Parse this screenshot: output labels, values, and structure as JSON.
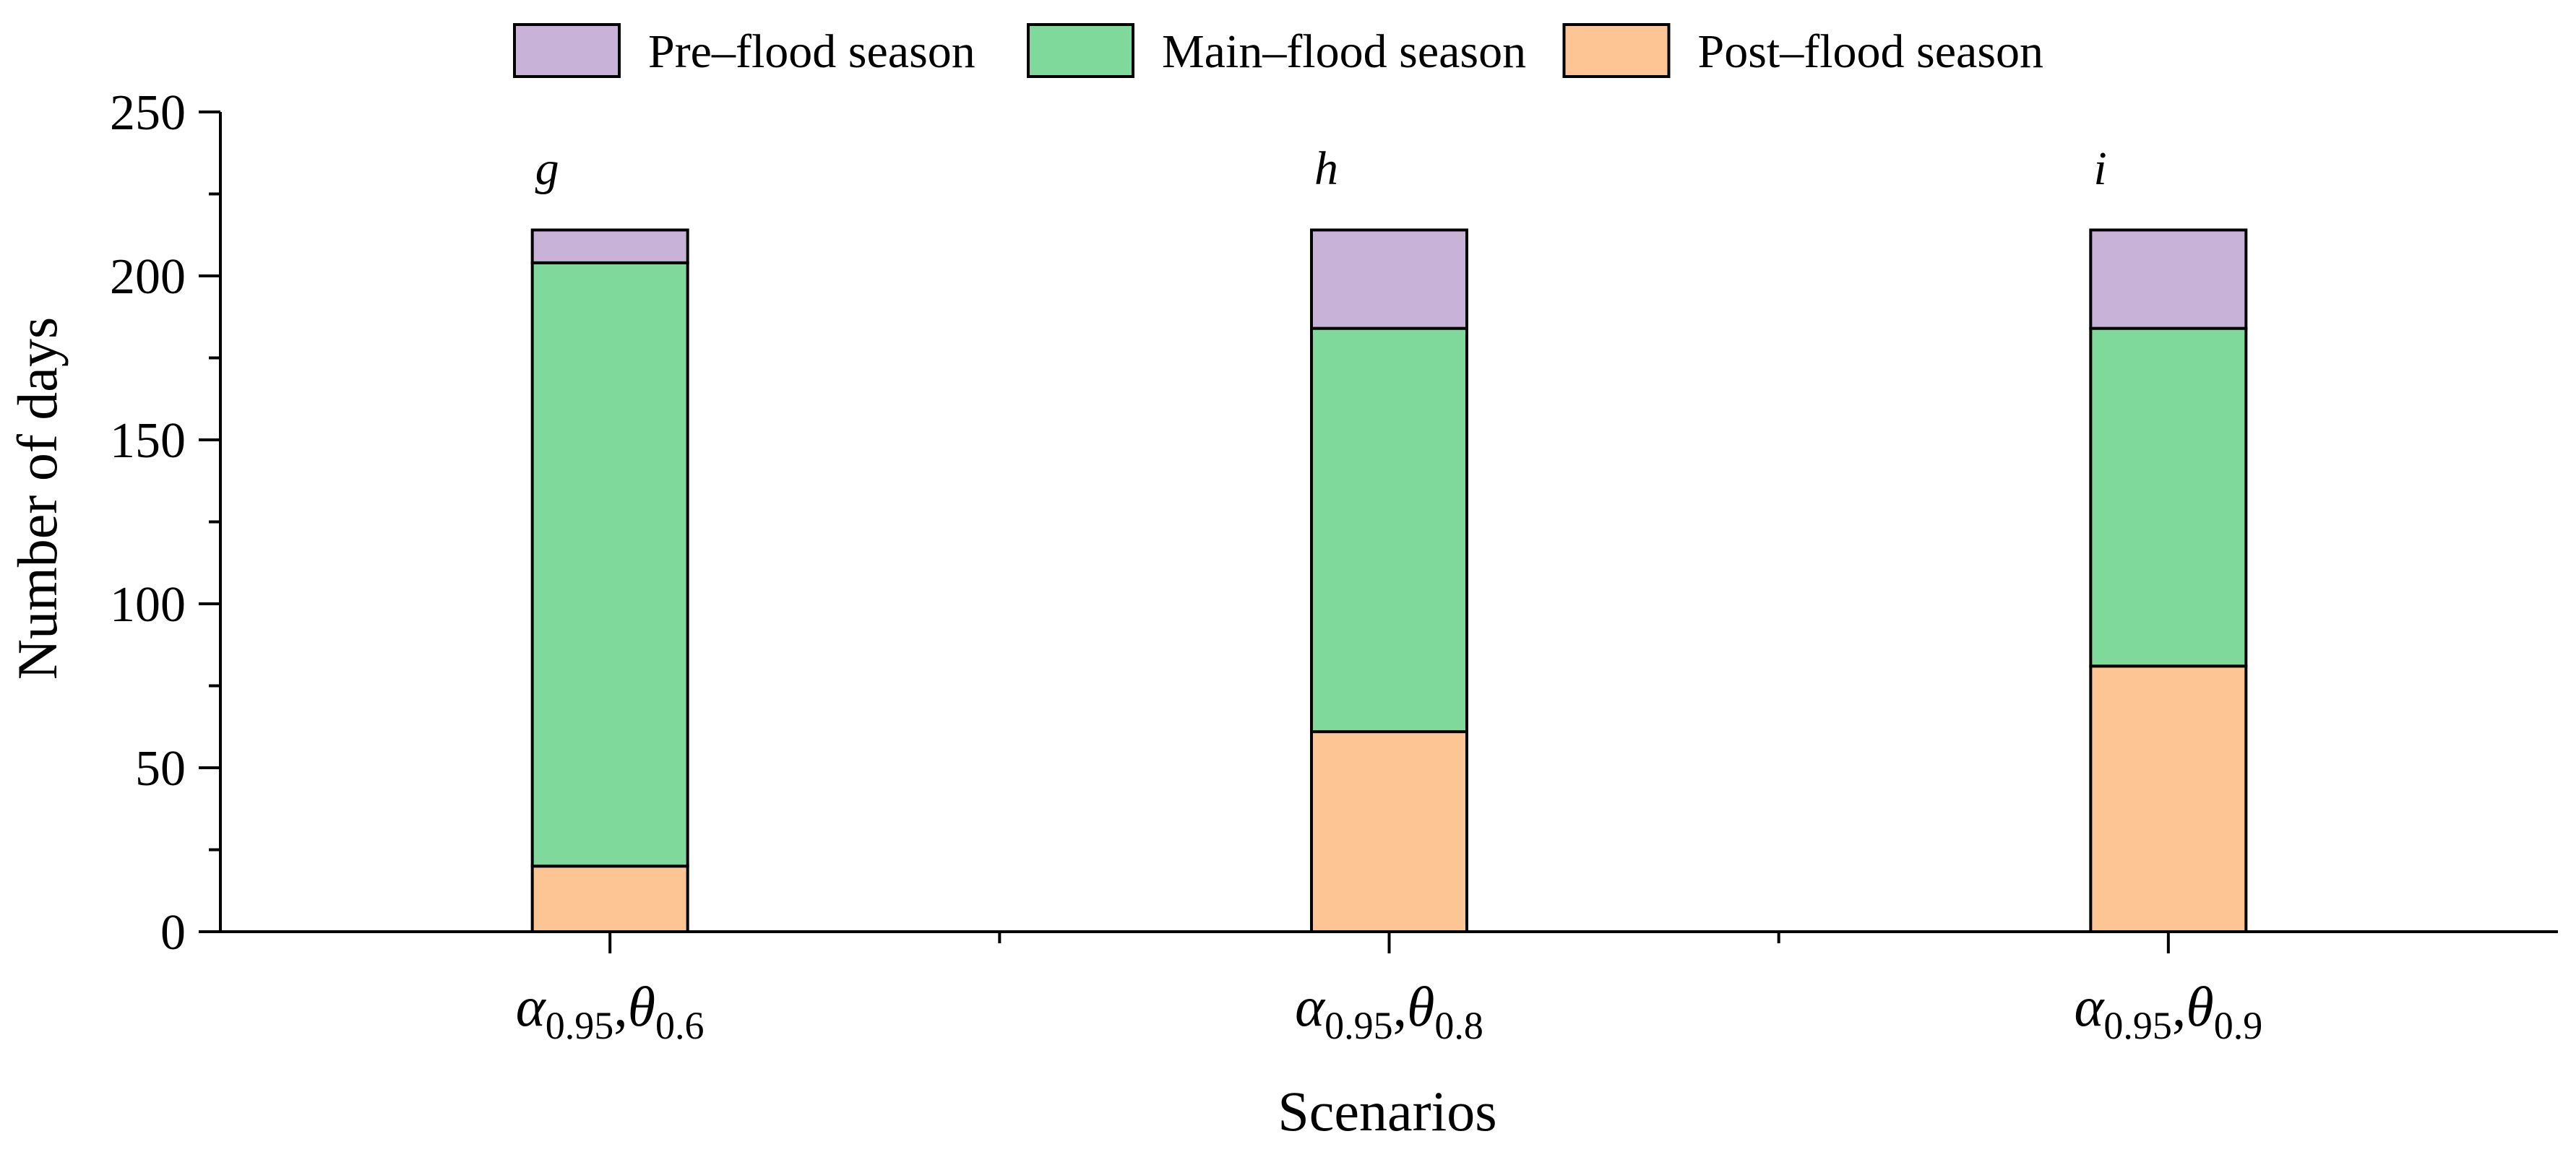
{
  "chart_data": {
    "type": "bar",
    "stacked": true,
    "title": "",
    "xlabel": "Scenarios",
    "ylabel": "Number of days",
    "ylim": [
      0,
      250
    ],
    "yticks": [
      0,
      50,
      100,
      150,
      200,
      250
    ],
    "categories": [
      {
        "label": "α0.95,θ0.6",
        "alpha": "α",
        "alpha_sub": "0.95",
        "sep": ",",
        "theta": "θ",
        "theta_sub": "0.6",
        "panel": "g"
      },
      {
        "label": "α0.95,θ0.8",
        "alpha": "α",
        "alpha_sub": "0.95",
        "sep": ",",
        "theta": "θ",
        "theta_sub": "0.8",
        "panel": "h"
      },
      {
        "label": "α0.95,θ0.9",
        "alpha": "α",
        "alpha_sub": "0.95",
        "sep": ",",
        "theta": "θ",
        "theta_sub": "0.9",
        "panel": "i"
      }
    ],
    "series": [
      {
        "name": "Post–flood season",
        "color": "#fdc593",
        "values": [
          20,
          61,
          81
        ]
      },
      {
        "name": "Main–flood season",
        "color": "#7ed99a",
        "values": [
          184,
          123,
          103
        ]
      },
      {
        "name": "Pre–flood season",
        "color": "#c8b2d8",
        "values": [
          10,
          30,
          30
        ]
      }
    ],
    "legend": {
      "position": "top-center",
      "order": [
        "Pre–flood season",
        "Main–flood season",
        "Post–flood season"
      ]
    }
  }
}
